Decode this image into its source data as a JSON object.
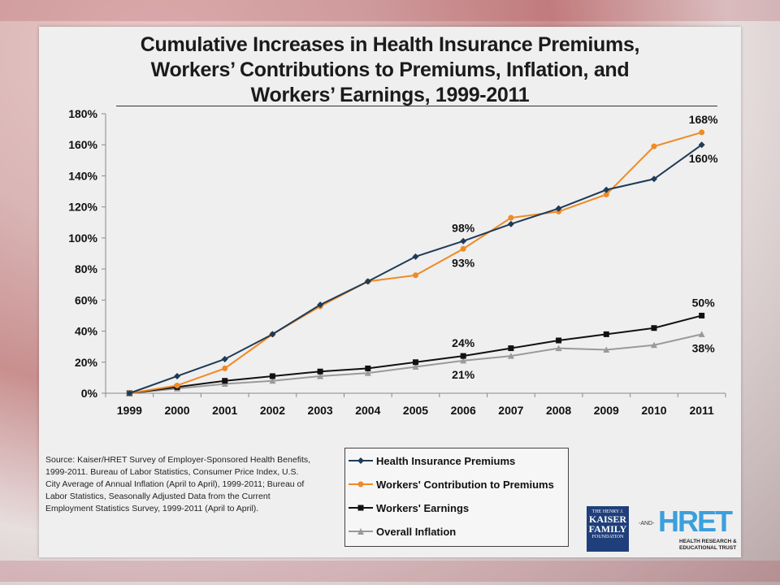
{
  "slide": {
    "title_lines": [
      "Cumulative Increases in Health Insurance Premiums,",
      "Workers’ Contributions to Premiums, Inflation, and",
      "Workers’ Earnings, 1999-2011"
    ],
    "source_text": "Source:  Kaiser/HRET  Survey  of  Employer-Sponsored  Health Benefits,  1999-2011.   Bureau  of  Labor  Statistics,  Consumer Price  Index,  U.S.  City  Average  of  Annual  Inflation  (April  to April),  1999-2011;  Bureau  of  Labor  Statistics,  Seasonally Adjusted  Data  from  the  Current  Employment  Statistics  Survey, 1999-2011  (April to April).",
    "logos": {
      "kff_small": "THE HENRY J.",
      "kff_big_1": "KAISER",
      "kff_big_2": "FAMILY",
      "kff_foundation": "FOUNDATION",
      "and": "-AND-",
      "hret": "HRET",
      "hret_sub_1": "HEALTH RESEARCH &",
      "hret_sub_2": "EDUCATIONAL TRUST"
    }
  },
  "chart_data": {
    "type": "line",
    "title": "Cumulative Increases in Health Insurance Premiums, Workers’ Contributions to Premiums, Inflation, and Workers’ Earnings, 1999-2011",
    "categories": [
      "1999",
      "2000",
      "2001",
      "2002",
      "2003",
      "2004",
      "2005",
      "2006",
      "2007",
      "2008",
      "2009",
      "2010",
      "2011"
    ],
    "ylim": [
      0,
      180
    ],
    "yticks": [
      0,
      20,
      40,
      60,
      80,
      100,
      120,
      140,
      160,
      180
    ],
    "ytick_labels": [
      "0%",
      "20%",
      "40%",
      "60%",
      "80%",
      "100%",
      "120%",
      "140%",
      "160%",
      "180%"
    ],
    "legend_position": "bottom",
    "series": [
      {
        "name": "Health Insurance Premiums",
        "color": "#1f3b57",
        "marker": "diamond",
        "values": [
          0,
          11,
          22,
          38,
          57,
          72,
          88,
          98,
          109,
          119,
          131,
          138,
          160
        ]
      },
      {
        "name": "Workers' Contribution to Premiums",
        "color": "#f08a24",
        "marker": "circle",
        "values": [
          0,
          5,
          16,
          38,
          56,
          72,
          76,
          93,
          113,
          117,
          128,
          159,
          168
        ]
      },
      {
        "name": "Workers' Earnings",
        "color": "#111111",
        "marker": "square",
        "values": [
          0,
          4,
          8,
          11,
          14,
          16,
          20,
          24,
          29,
          34,
          38,
          42,
          50
        ]
      },
      {
        "name": "Overall Inflation",
        "color": "#9a9a9a",
        "marker": "triangle",
        "values": [
          0,
          3,
          6,
          8,
          11,
          13,
          17,
          21,
          24,
          29,
          28,
          31,
          38
        ]
      }
    ],
    "annotations": [
      {
        "text": "168%",
        "series": 1,
        "index": 12,
        "pos": "above"
      },
      {
        "text": "160%",
        "series": 0,
        "index": 12,
        "pos": "below"
      },
      {
        "text": "98%",
        "series": 0,
        "index": 7,
        "pos": "above"
      },
      {
        "text": "93%",
        "series": 1,
        "index": 7,
        "pos": "below"
      },
      {
        "text": "50%",
        "series": 2,
        "index": 12,
        "pos": "above"
      },
      {
        "text": "38%",
        "series": 3,
        "index": 12,
        "pos": "below"
      },
      {
        "text": "24%",
        "series": 2,
        "index": 7,
        "pos": "above"
      },
      {
        "text": "21%",
        "series": 3,
        "index": 7,
        "pos": "below"
      }
    ]
  }
}
